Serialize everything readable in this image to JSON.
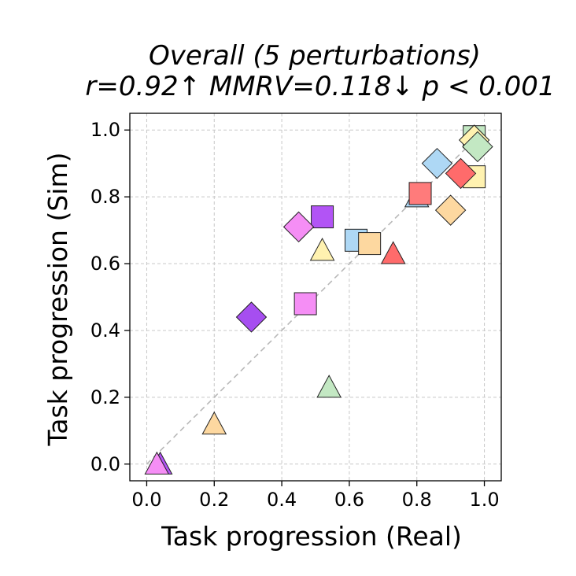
{
  "chart_data": {
    "type": "scatter",
    "title_line1": "Overall (5 perturbations)",
    "title_line2": "r=0.92↑ MMRV=0.118↓ p < 0.001",
    "xlabel": "Task progression (Real)",
    "ylabel": "Task progression (Sim)",
    "xlim": [
      -0.05,
      1.05
    ],
    "ylim": [
      -0.05,
      1.05
    ],
    "xticks": [
      "0.0",
      "0.2",
      "0.4",
      "0.6",
      "0.8",
      "1.0"
    ],
    "yticks": [
      "0.0",
      "0.2",
      "0.4",
      "0.6",
      "0.8",
      "1.0"
    ],
    "grid": true,
    "reference_line": {
      "from": [
        0,
        0
      ],
      "to": [
        1,
        1
      ],
      "style": "dashed",
      "color": "#b8b8b8"
    },
    "points": [
      {
        "x": 0.8,
        "y": 0.8,
        "marker": "triangle",
        "color": "#aed8f5"
      },
      {
        "x": 0.97,
        "y": 0.98,
        "marker": "square",
        "color": "#c3e8c3"
      },
      {
        "x": 0.97,
        "y": 0.86,
        "marker": "square",
        "color": "#fff2b0"
      },
      {
        "x": 0.97,
        "y": 0.97,
        "marker": "diamond",
        "color": "#fff2b0"
      },
      {
        "x": 0.98,
        "y": 0.95,
        "marker": "diamond",
        "color": "#c3e8c3"
      },
      {
        "x": 0.86,
        "y": 0.9,
        "marker": "diamond",
        "color": "#aed8f5"
      },
      {
        "x": 0.93,
        "y": 0.87,
        "marker": "diamond",
        "color": "#ff6b6b"
      },
      {
        "x": 0.81,
        "y": 0.81,
        "marker": "square",
        "color": "#ff7b7b"
      },
      {
        "x": 0.9,
        "y": 0.76,
        "marker": "diamond",
        "color": "#fdd8a0"
      },
      {
        "x": 0.52,
        "y": 0.74,
        "marker": "square",
        "color": "#b254f5"
      },
      {
        "x": 0.45,
        "y": 0.71,
        "marker": "diamond",
        "color": "#f58ef5"
      },
      {
        "x": 0.52,
        "y": 0.64,
        "marker": "triangle",
        "color": "#fff2b0"
      },
      {
        "x": 0.62,
        "y": 0.67,
        "marker": "square",
        "color": "#aed8f5"
      },
      {
        "x": 0.66,
        "y": 0.66,
        "marker": "square",
        "color": "#fdd8a0"
      },
      {
        "x": 0.73,
        "y": 0.63,
        "marker": "triangle",
        "color": "#ff6b6b"
      },
      {
        "x": 0.47,
        "y": 0.48,
        "marker": "square",
        "color": "#f58ef5"
      },
      {
        "x": 0.31,
        "y": 0.44,
        "marker": "diamond",
        "color": "#a64ef0"
      },
      {
        "x": 0.54,
        "y": 0.23,
        "marker": "triangle",
        "color": "#c3e8c3"
      },
      {
        "x": 0.2,
        "y": 0.12,
        "marker": "triangle",
        "color": "#fdd8a0"
      },
      {
        "x": 0.04,
        "y": 0.0,
        "marker": "triangle",
        "color": "#b254f5"
      },
      {
        "x": 0.03,
        "y": 0.0,
        "marker": "triangle",
        "color": "#f58ef5"
      }
    ]
  }
}
